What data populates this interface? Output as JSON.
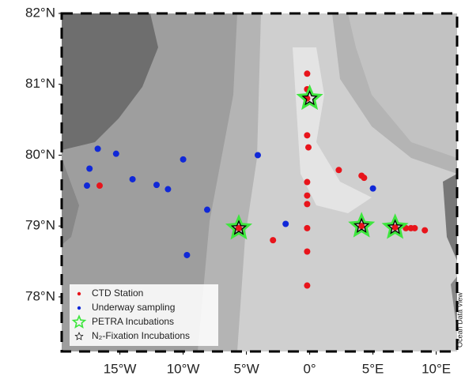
{
  "chart_data": {
    "type": "scatter",
    "xlim": [
      -19.6,
      11.65
    ],
    "ylim": [
      77.23,
      82
    ],
    "xticks": [
      {
        "value": -15,
        "label": "15°W"
      },
      {
        "value": -10,
        "label": "10°W"
      },
      {
        "value": -5,
        "label": "5°W"
      },
      {
        "value": 0,
        "label": "0°"
      },
      {
        "value": 5,
        "label": "5°E"
      },
      {
        "value": 10,
        "label": "10°E"
      }
    ],
    "yticks": [
      {
        "value": 78,
        "label": "78°N"
      },
      {
        "value": 79,
        "label": "79°N"
      },
      {
        "value": 80,
        "label": "80°N"
      },
      {
        "value": 81,
        "label": "81°N"
      },
      {
        "value": 82,
        "label": "82°N"
      }
    ],
    "legend": "lower left",
    "credit": "Ocean Data View",
    "series": [
      {
        "name": "CTD Station",
        "color": "#e8141b",
        "marker": "circle",
        "x": [
          -0.2,
          -0.2,
          -0.2,
          -0.2,
          -0.1,
          2.3,
          4.1,
          4.3,
          -0.2,
          -0.2,
          -0.2,
          -0.2,
          -0.2,
          -0.2,
          -2.9,
          -5.6,
          4.1,
          6.75,
          7.6,
          8.0,
          8.3,
          9.1,
          -16.6
        ],
        "values": [
          81.15,
          80.93,
          80.8,
          80.28,
          80.11,
          79.79,
          79.71,
          79.68,
          79.62,
          79.43,
          79.31,
          78.97,
          78.64,
          78.16,
          78.8,
          78.97,
          79.0,
          78.98,
          78.97,
          78.97,
          78.97,
          78.94,
          79.57
        ]
      },
      {
        "name": "Underway sampling",
        "color": "#1028d8",
        "marker": "circle",
        "x": [
          -16.75,
          -15.3,
          -17.4,
          -17.6,
          -14.0,
          -12.1,
          -11.2,
          -10.0,
          -8.1,
          -9.7,
          -4.1,
          -1.9,
          5.0
        ],
        "values": [
          80.09,
          80.02,
          79.81,
          79.57,
          79.66,
          79.58,
          79.52,
          79.94,
          79.23,
          78.59,
          80.0,
          79.03,
          79.53
        ]
      },
      {
        "name": "PETRA Incubations",
        "color": "#3ee63e",
        "marker": "star",
        "x": [
          0.0,
          -5.6,
          4.1,
          6.75
        ],
        "values": [
          80.8,
          78.97,
          79.0,
          78.98
        ]
      },
      {
        "name": "N₂-Fixation Incubations",
        "color": "#000000",
        "marker": "star-small",
        "x": [
          0.0,
          -5.6,
          4.1,
          6.75
        ],
        "values": [
          80.8,
          78.97,
          79.0,
          78.98
        ]
      }
    ]
  }
}
